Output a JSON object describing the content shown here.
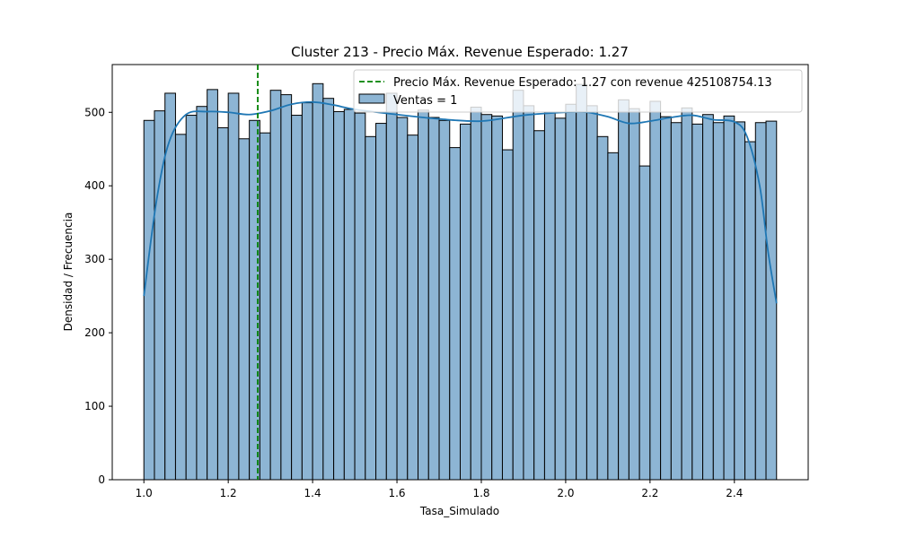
{
  "chart_data": {
    "type": "bar",
    "title": "Cluster 213 - Precio Máx. Revenue Esperado: 1.27",
    "xlabel": "Tasa_Simulado",
    "ylabel": "Densidad / Frecuencia",
    "xlim": [
      0.925,
      2.575
    ],
    "ylim": [
      0,
      565
    ],
    "xticks": [
      1.0,
      1.2,
      1.4,
      1.6,
      1.8,
      2.0,
      2.2,
      2.4
    ],
    "xtick_labels": [
      "1.0",
      "1.2",
      "1.4",
      "1.6",
      "1.8",
      "2.0",
      "2.2",
      "2.4"
    ],
    "yticks": [
      0,
      100,
      200,
      300,
      400,
      500
    ],
    "ytick_labels": [
      "0",
      "100",
      "200",
      "300",
      "400",
      "500"
    ],
    "grid": false,
    "legend_position": "top-right",
    "histogram": {
      "name": "Ventas = 1",
      "bin_start": 1.0,
      "bin_end": 2.5,
      "color": "#8db5d4",
      "counts": [
        489,
        502,
        526,
        470,
        496,
        508,
        531,
        479,
        526,
        464,
        489,
        472,
        530,
        524,
        496,
        513,
        539,
        519,
        501,
        504,
        499,
        467,
        485,
        526,
        493,
        469,
        503,
        493,
        489,
        452,
        484,
        507,
        497,
        495,
        449,
        530,
        509,
        475,
        500,
        492,
        511,
        538,
        509,
        467,
        445,
        517,
        505,
        427,
        515,
        494,
        486,
        506,
        484,
        497,
        486,
        495,
        487,
        460,
        486,
        488
      ]
    },
    "kde": {
      "color": "#1f77b4",
      "x": [
        1.0,
        1.03,
        1.06,
        1.1,
        1.15,
        1.2,
        1.25,
        1.3,
        1.35,
        1.4,
        1.45,
        1.5,
        1.6,
        1.7,
        1.8,
        1.9,
        2.0,
        2.05,
        2.1,
        2.15,
        2.2,
        2.25,
        2.3,
        2.35,
        2.4,
        2.43,
        2.46,
        2.48,
        2.5
      ],
      "y": [
        250,
        380,
        460,
        497,
        501,
        500,
        497,
        502,
        511,
        514,
        510,
        504,
        497,
        491,
        488,
        496,
        500,
        500,
        494,
        485,
        488,
        493,
        496,
        490,
        487,
        467,
        400,
        310,
        240
      ]
    },
    "reference_line": {
      "label": "Precio Máx. Revenue Esperado: 1.27 con revenue 425108754.13",
      "x": 1.27,
      "color": "#008000",
      "style": "dashed"
    }
  }
}
